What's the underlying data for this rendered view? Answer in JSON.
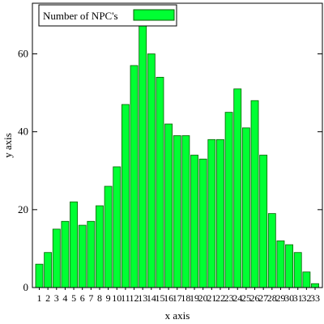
{
  "chart_data": {
    "type": "bar",
    "xlabel": "x axis",
    "ylabel": "y axis",
    "ylim": [
      0,
      73
    ],
    "yticks": [
      0,
      20,
      40,
      60
    ],
    "grid": false,
    "legend": {
      "placement": "top-left",
      "label": "Number of NPC's"
    },
    "colors": {
      "bar_fill": "#00ff33",
      "bar_stroke": "#006000",
      "axis": "#000000"
    },
    "categories": [
      "1",
      "2",
      "3",
      "4",
      "5",
      "6",
      "7",
      "8",
      "9",
      "10",
      "11",
      "12",
      "13",
      "14",
      "15",
      "16",
      "17",
      "18",
      "19",
      "20",
      "21",
      "22",
      "23",
      "24",
      "25",
      "26",
      "27",
      "28",
      "29",
      "30",
      "31",
      "32",
      "33"
    ],
    "series": [
      {
        "name": "Number of NPC's",
        "values": [
          6,
          9,
          15,
          17,
          22,
          16,
          17,
          21,
          26,
          31,
          47,
          57,
          70,
          60,
          54,
          42,
          39,
          39,
          34,
          33,
          38,
          38,
          45,
          51,
          41,
          48,
          34,
          19,
          12,
          11,
          9,
          4,
          1
        ]
      }
    ]
  }
}
